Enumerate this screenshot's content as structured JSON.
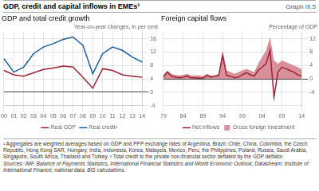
{
  "title": "GDP, credit and capital inflows in EMEs¹",
  "annotations": [
    "Graph III.5",
    "¹ Aggregates are weighted averages based on GDP and PPP exchange rates of Argentina, Brazil, Chile, China, Colombia, the Czech Republic, Hong Kong SAR, Hungary, India, Indonesia, Korea, Malaysia, Mexico, Peru, the Philippines, Poland, Russia, Saudi Arabia, Singapore, South Africa, Thailand and Turkey.   ² Total credit to the private non-financial sector deflated by the GDP deflator.",
    "Sources: IMF, Balance of Payments Statistics, International Financial Statistics and World Economic Outlook; Datastream; Institute of International Finance; national data; BIS calculations."
  ],
  "chart_data": [
    {
      "type": "line",
      "subtitle": "GDP and total credit growth",
      "ylabel": "Year-on-year changes, in per cent",
      "categories": [
        "00",
        "01",
        "02",
        "03",
        "04",
        "05",
        "06",
        "07",
        "08",
        "09",
        "10",
        "11",
        "12",
        "13",
        "14"
      ],
      "series": [
        {
          "name": "Real GDP",
          "color": "#9b2335",
          "values": [
            6.5,
            5.2,
            4.8,
            5.8,
            6.8,
            7.2,
            7.8,
            7.5,
            4.5,
            1.2,
            7.0,
            6.5,
            5.2,
            4.8,
            4.5
          ]
        },
        {
          "name": "Real credit²",
          "color": "#2060a0",
          "values": [
            10.0,
            6.0,
            7.5,
            11.5,
            13.5,
            14.5,
            15.8,
            16.5,
            14.0,
            5.5,
            11.5,
            13.5,
            12.5,
            10.5,
            9.0
          ]
        }
      ],
      "ylim": [
        -4,
        18
      ],
      "yticks": [
        -4,
        0,
        4,
        8,
        12,
        16
      ],
      "grid": true,
      "legend": "bottom"
    },
    {
      "type": "line",
      "subtitle": "Foreign capital flows",
      "ylabel": "Percentage of GDP",
      "categories": [
        "79",
        null,
        null,
        null,
        null,
        "84",
        null,
        null,
        null,
        null,
        "89",
        null,
        null,
        null,
        null,
        "94",
        null,
        null,
        null,
        null,
        "99",
        null,
        null,
        null,
        null,
        "04",
        null,
        null,
        null,
        null,
        "09",
        null,
        null,
        null,
        null,
        "14"
      ],
      "series": [
        {
          "name": "Gross foreign investment",
          "type": "area",
          "color": "#d8909a",
          "values": [
            1.2,
            2.5,
            1.5,
            1.2,
            1.0,
            1.2,
            1.5,
            1.0,
            1.0,
            1.0,
            0.8,
            1.5,
            1.0,
            1.0,
            1.5,
            8.5,
            2.5,
            2.0,
            1.5,
            2.0,
            2.5,
            3.0,
            2.5,
            2.0,
            4.5,
            6.5,
            8.5,
            12.5,
            5.5,
            4.5,
            5.5,
            5.0,
            4.5,
            4.0,
            3.5,
            2.8
          ]
        },
        {
          "name": "Net inflows",
          "type": "line",
          "color": "#9b2335",
          "values": [
            0.5,
            2.0,
            0.8,
            0.5,
            0.3,
            0.5,
            0.8,
            0.3,
            0.3,
            0.2,
            0.2,
            1.0,
            0.5,
            0.8,
            1.0,
            7.0,
            1.0,
            0.8,
            0.3,
            0.5,
            1.2,
            1.8,
            1.2,
            0.8,
            2.5,
            3.5,
            4.5,
            8.5,
            -5.5,
            2.0,
            3.5,
            3.0,
            2.5,
            2.0,
            1.2,
            0.8
          ]
        }
      ],
      "ylim": [
        -8,
        14
      ],
      "yticks": [
        -4,
        0,
        4,
        8,
        12
      ],
      "grid": true,
      "legend": "bottom"
    }
  ]
}
